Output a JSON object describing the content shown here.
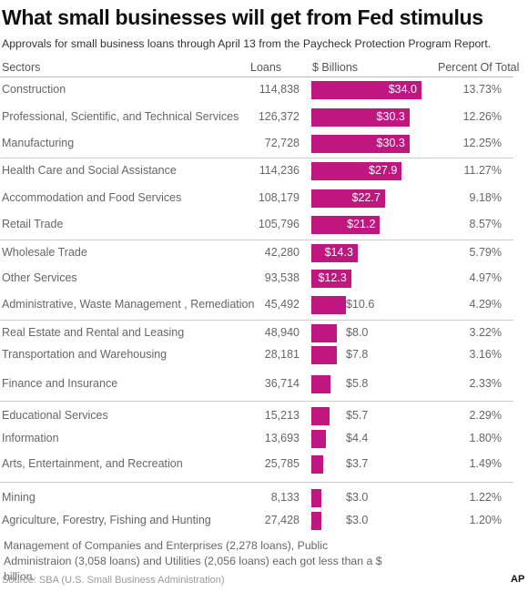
{
  "title": "What small businesses will get from Fed stimulus",
  "subtitle": "Approvals for small business loans through April 13 from the Paycheck Protection Program Report.",
  "headers": {
    "sectors": "Sectors",
    "loans": "Loans",
    "billions": "$ Billions",
    "percent": "Percent Of Total"
  },
  "chart_data": {
    "type": "bar",
    "orientation": "horizontal",
    "title": "What small businesses will get from Fed stimulus",
    "subtitle": "Approvals for small business loans through April 13 from the Paycheck Protection Program Report.",
    "categories": [
      "Construction",
      "Professional, Scientific, and Technical Services",
      "Manufacturing",
      "Health Care and Social Assistance",
      "Accommodation and Food Services",
      "Retail Trade",
      "Wholesale Trade",
      "Other Services",
      "Administrative, Waste Management , Remediation",
      "Real Estate and Rental and Leasing",
      "Transportation and Warehousing",
      "Finance and Insurance",
      "Educational Services",
      "Information",
      "Arts, Entertainment, and Recreation",
      "Mining",
      " Agriculture, Forestry, Fishing and Hunting"
    ],
    "loans": [
      "114,838",
      "126,372",
      "72,728",
      "114,236",
      "108,179",
      "105,796",
      "42,280",
      "93,538",
      "45,492",
      "48,940",
      "28,181",
      "36,714",
      "15,213",
      "13,693",
      "25,785",
      "8,133",
      "27,428"
    ],
    "values": [
      34.0,
      30.3,
      30.3,
      27.9,
      22.7,
      21.2,
      14.3,
      12.3,
      10.6,
      8.0,
      7.8,
      5.8,
      5.7,
      4.4,
      3.7,
      3.0,
      3.0
    ],
    "value_labels": [
      "$34.0",
      "$30.3",
      "$30.3",
      "$27.9",
      "$22.7",
      "$21.2",
      "$14.3",
      "$12.3",
      "$10.6",
      "$8.0",
      "$7.8",
      "$5.8",
      "$5.7",
      "$4.4",
      "$3.7",
      "$3.0",
      "$3.0"
    ],
    "percent_of_total": [
      "13.73%",
      "12.26%",
      "12.25%",
      "11.27%",
      "9.18%",
      "8.57%",
      "5.79%",
      "4.97%",
      "4.29%",
      "3.22%",
      "3.16%",
      "2.33%",
      "2.29%",
      "1.80%",
      "1.49%",
      "1.22%",
      "1.20%"
    ],
    "bar_color": "#c0167f",
    "xlim": [
      0,
      34
    ]
  },
  "note": "Management of Companies and Enterprises (2,278 loans), Public Administraion (3,058 loans) and  Utilities (2,056 loans) each got less than a $ billion.",
  "source": "Source: SBA (U.S. Small Business Administration)",
  "credit": "AP"
}
